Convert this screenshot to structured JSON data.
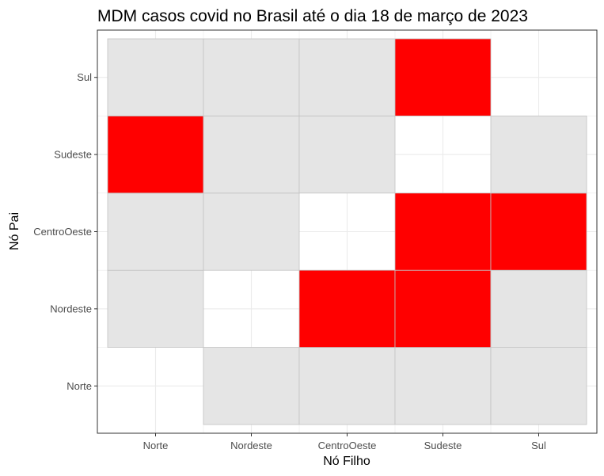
{
  "chart_data": {
    "type": "heatmap",
    "title": "MDM casos covid no Brasil até o dia 18 de março de 2023",
    "xlabel": "Nó Filho",
    "ylabel": "Nó Pai",
    "x_categories": [
      "Norte",
      "Nordeste",
      "CentroOeste",
      "Sudeste",
      "Sul"
    ],
    "y_categories": [
      "Norte",
      "Nordeste",
      "CentroOeste",
      "Sudeste",
      "Sul"
    ],
    "legend": "none",
    "grid": true,
    "cell_states": {
      "red": "present",
      "grey": "absent"
    },
    "cells": [
      {
        "x": "Nordeste",
        "y": "Norte",
        "state": "grey"
      },
      {
        "x": "CentroOeste",
        "y": "Norte",
        "state": "grey"
      },
      {
        "x": "Sudeste",
        "y": "Norte",
        "state": "grey"
      },
      {
        "x": "Sul",
        "y": "Norte",
        "state": "grey"
      },
      {
        "x": "Norte",
        "y": "Nordeste",
        "state": "grey"
      },
      {
        "x": "CentroOeste",
        "y": "Nordeste",
        "state": "red"
      },
      {
        "x": "Sudeste",
        "y": "Nordeste",
        "state": "red"
      },
      {
        "x": "Sul",
        "y": "Nordeste",
        "state": "grey"
      },
      {
        "x": "Norte",
        "y": "CentroOeste",
        "state": "grey"
      },
      {
        "x": "Nordeste",
        "y": "CentroOeste",
        "state": "grey"
      },
      {
        "x": "Sudeste",
        "y": "CentroOeste",
        "state": "red"
      },
      {
        "x": "Sul",
        "y": "CentroOeste",
        "state": "red"
      },
      {
        "x": "Norte",
        "y": "Sudeste",
        "state": "red"
      },
      {
        "x": "Nordeste",
        "y": "Sudeste",
        "state": "grey"
      },
      {
        "x": "CentroOeste",
        "y": "Sudeste",
        "state": "grey"
      },
      {
        "x": "Sul",
        "y": "Sudeste",
        "state": "grey"
      },
      {
        "x": "Norte",
        "y": "Sul",
        "state": "grey"
      },
      {
        "x": "Nordeste",
        "y": "Sul",
        "state": "grey"
      },
      {
        "x": "CentroOeste",
        "y": "Sul",
        "state": "grey"
      },
      {
        "x": "Sudeste",
        "y": "Sul",
        "state": "red"
      }
    ]
  },
  "colors": {
    "red": "#ff0000",
    "grey": "#e5e5e5",
    "tile_border": "#c2c2c2",
    "grid": "#ebebeb",
    "panel_border": "#333333",
    "tick_text": "#4d4d4d"
  }
}
